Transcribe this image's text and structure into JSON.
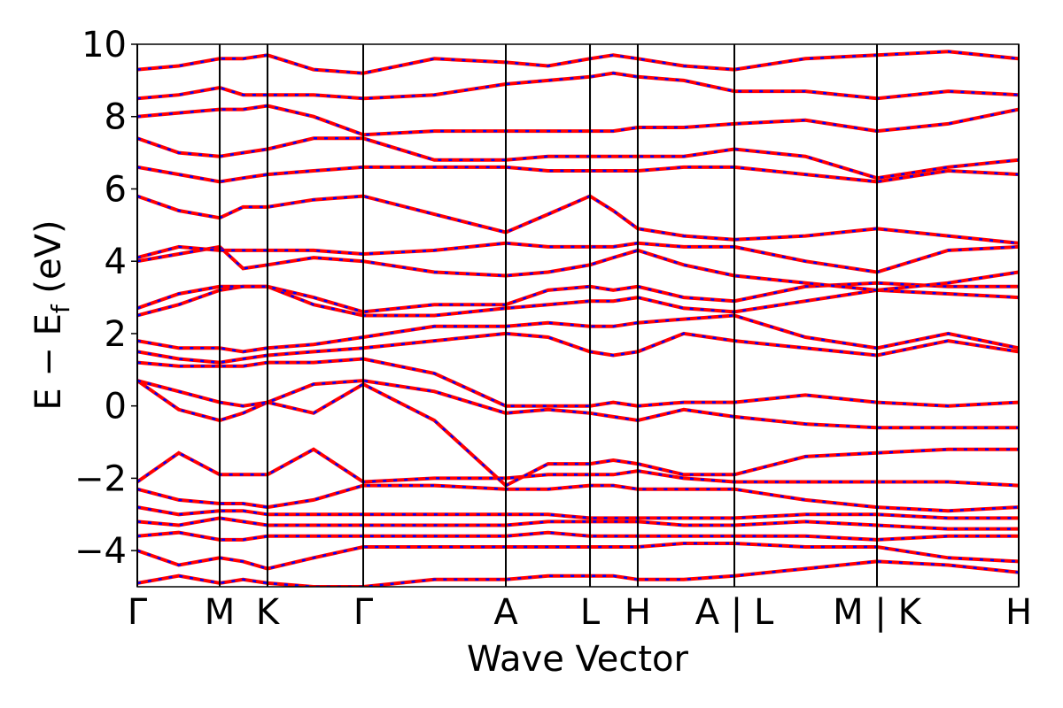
{
  "chart_data": {
    "type": "band_structure",
    "ylabel": [
      "E − E",
      "f",
      " (eV)"
    ],
    "xlabel": "Wave Vector",
    "xlim": [
      0,
      1
    ],
    "ylim": [
      -5,
      10
    ],
    "yticks": [
      {
        "value": -4,
        "label": "−4"
      },
      {
        "value": -2,
        "label": "−2"
      },
      0,
      2,
      4,
      6,
      8,
      10
    ],
    "xticks": [
      {
        "value": 0,
        "label": "Γ"
      },
      {
        "value": 0.0935,
        "label": "M"
      },
      {
        "value": 0.1477,
        "label": "K"
      },
      {
        "value": 0.2563,
        "label": "Γ"
      },
      {
        "value": 0.4181,
        "label": "A"
      },
      {
        "value": 0.5136,
        "label": "L"
      },
      {
        "value": 0.5678,
        "label": "H"
      },
      {
        "value": 0.6774,
        "label": "A | L"
      },
      {
        "value": 0.8392,
        "label": "M | K"
      },
      {
        "value": 1,
        "label": "H"
      }
    ],
    "color": "#ff0000",
    "dash_color": "#0000ff",
    "x": [
      0,
      0.047,
      0.0935,
      0.12,
      0.1477,
      0.2,
      0.2563,
      0.337,
      0.4181,
      0.466,
      0.5136,
      0.54,
      0.5678,
      0.62,
      0.6774,
      0.758,
      0.8392,
      0.92,
      1
    ],
    "bands": [
      [
        -4.9,
        -4.7,
        -4.9,
        -4.8,
        -4.9,
        -5.0,
        -5.0,
        -4.8,
        -4.8,
        -4.7,
        -4.7,
        -4.7,
        -4.8,
        -4.8,
        -4.7,
        -4.5,
        -4.3,
        -4.4,
        -4.6
      ],
      [
        -4.0,
        -4.4,
        -4.2,
        -4.3,
        -4.5,
        -4.2,
        -3.9,
        -3.9,
        -3.9,
        -3.9,
        -3.9,
        -3.9,
        -3.9,
        -3.8,
        -3.8,
        -3.9,
        -3.9,
        -4.2,
        -4.3
      ],
      [
        -3.6,
        -3.5,
        -3.7,
        -3.7,
        -3.6,
        -3.6,
        -3.6,
        -3.6,
        -3.6,
        -3.5,
        -3.6,
        -3.6,
        -3.6,
        -3.6,
        -3.6,
        -3.6,
        -3.7,
        -3.6,
        -3.6
      ],
      [
        -3.2,
        -3.3,
        -3.1,
        -3.2,
        -3.3,
        -3.3,
        -3.3,
        -3.3,
        -3.3,
        -3.2,
        -3.2,
        -3.2,
        -3.2,
        -3.3,
        -3.3,
        -3.2,
        -3.3,
        -3.4,
        -3.4
      ],
      [
        -2.8,
        -3.0,
        -2.9,
        -2.9,
        -3.0,
        -3.0,
        -3.0,
        -3.0,
        -3.0,
        -3.0,
        -3.1,
        -3.1,
        -3.1,
        -3.1,
        -3.1,
        -3.0,
        -3.0,
        -3.1,
        -3.1
      ],
      [
        -2.3,
        -2.6,
        -2.7,
        -2.7,
        -2.8,
        -2.6,
        -2.2,
        -2.2,
        -2.3,
        -2.3,
        -2.2,
        -2.2,
        -2.3,
        -2.3,
        -2.3,
        -2.6,
        -2.8,
        -2.9,
        -2.8
      ],
      [
        -2.1,
        -1.3,
        -1.9,
        -1.9,
        -1.9,
        -1.2,
        -2.1,
        -2.0,
        -2.0,
        -1.9,
        -1.9,
        -1.9,
        -1.8,
        -2.0,
        -2.1,
        -2.1,
        -2.1,
        -2.1,
        -2.2
      ],
      [
        0.7,
        -0.1,
        -0.4,
        -0.2,
        0.1,
        -0.2,
        0.6,
        -0.4,
        -2.2,
        -1.6,
        -1.6,
        -1.5,
        -1.6,
        -1.9,
        -1.9,
        -1.4,
        -1.3,
        -1.2,
        -1.2
      ],
      [
        0.7,
        0.4,
        0.1,
        0.0,
        0.1,
        0.6,
        0.7,
        0.4,
        -0.2,
        -0.1,
        -0.2,
        -0.3,
        -0.4,
        -0.1,
        -0.3,
        -0.5,
        -0.6,
        -0.6,
        -0.6
      ],
      [
        1.2,
        1.1,
        1.1,
        1.1,
        1.2,
        1.2,
        1.3,
        0.9,
        0.0,
        0.0,
        0.0,
        0.1,
        0.0,
        0.1,
        0.1,
        0.3,
        0.1,
        0.0,
        0.1
      ],
      [
        1.5,
        1.3,
        1.2,
        1.3,
        1.4,
        1.5,
        1.6,
        1.8,
        2.0,
        1.9,
        1.5,
        1.4,
        1.5,
        2.0,
        1.8,
        1.6,
        1.4,
        1.8,
        1.5
      ],
      [
        1.8,
        1.6,
        1.6,
        1.5,
        1.6,
        1.7,
        1.9,
        2.2,
        2.2,
        2.3,
        2.2,
        2.2,
        2.3,
        2.4,
        2.5,
        1.9,
        1.6,
        2.0,
        1.6
      ],
      [
        2.5,
        2.8,
        3.2,
        3.3,
        3.3,
        2.8,
        2.5,
        2.5,
        2.7,
        2.8,
        2.9,
        2.9,
        3.0,
        2.7,
        2.6,
        2.9,
        3.2,
        3.1,
        3.0
      ],
      [
        2.7,
        3.1,
        3.3,
        3.3,
        3.3,
        3.0,
        2.6,
        2.8,
        2.8,
        3.2,
        3.3,
        3.2,
        3.3,
        3.0,
        2.9,
        3.3,
        3.4,
        3.3,
        3.3
      ],
      [
        4.0,
        4.2,
        4.4,
        3.8,
        3.9,
        4.1,
        4.0,
        3.7,
        3.6,
        3.7,
        3.9,
        4.1,
        4.3,
        3.9,
        3.6,
        3.4,
        3.2,
        3.4,
        3.7
      ],
      [
        4.1,
        4.4,
        4.3,
        4.3,
        4.3,
        4.3,
        4.2,
        4.3,
        4.5,
        4.4,
        4.4,
        4.4,
        4.5,
        4.4,
        4.4,
        4.0,
        3.7,
        4.3,
        4.4
      ],
      [
        5.8,
        5.4,
        5.2,
        5.5,
        5.5,
        5.7,
        5.8,
        5.3,
        4.8,
        5.3,
        5.8,
        5.4,
        4.9,
        4.7,
        4.6,
        4.7,
        4.9,
        4.7,
        4.5
      ],
      [
        6.6,
        6.4,
        6.2,
        6.3,
        6.4,
        6.5,
        6.6,
        6.6,
        6.6,
        6.5,
        6.5,
        6.5,
        6.5,
        6.6,
        6.6,
        6.4,
        6.2,
        6.5,
        6.4
      ],
      [
        7.4,
        7.0,
        6.9,
        7.0,
        7.1,
        7.4,
        7.4,
        6.8,
        6.8,
        6.9,
        6.9,
        6.9,
        6.9,
        6.9,
        7.1,
        6.9,
        6.3,
        6.6,
        6.8
      ],
      [
        8.0,
        8.1,
        8.2,
        8.2,
        8.3,
        8.0,
        7.5,
        7.6,
        7.6,
        7.6,
        7.6,
        7.6,
        7.7,
        7.7,
        7.8,
        7.9,
        7.6,
        7.8,
        8.2
      ],
      [
        8.5,
        8.6,
        8.8,
        8.6,
        8.6,
        8.6,
        8.5,
        8.6,
        8.9,
        9.0,
        9.1,
        9.2,
        9.1,
        9.0,
        8.7,
        8.7,
        8.5,
        8.7,
        8.6
      ],
      [
        9.3,
        9.4,
        9.6,
        9.6,
        9.7,
        9.3,
        9.2,
        9.6,
        9.5,
        9.4,
        9.6,
        9.7,
        9.6,
        9.4,
        9.3,
        9.6,
        9.7,
        9.8,
        9.6
      ]
    ]
  }
}
